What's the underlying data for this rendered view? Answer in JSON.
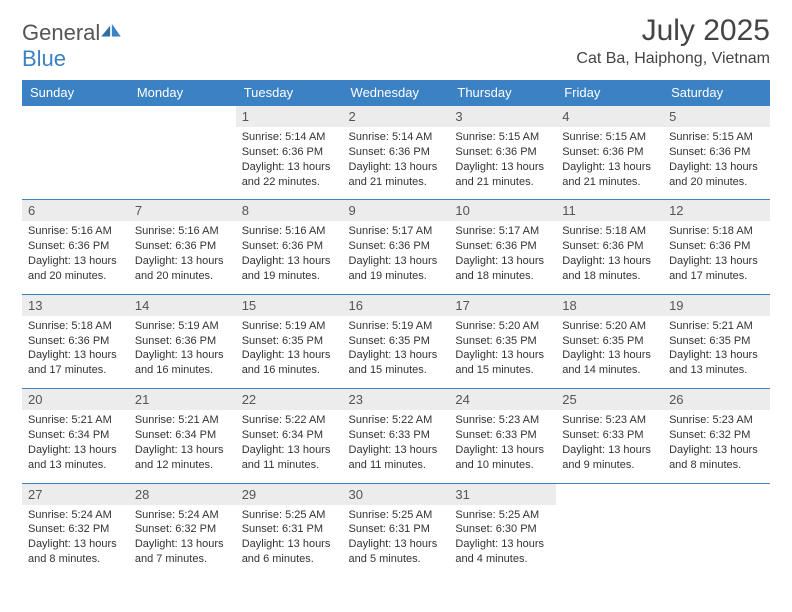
{
  "brand": {
    "name1": "General",
    "name2": "Blue"
  },
  "title": {
    "month": "July 2025",
    "location": "Cat Ba, Haiphong, Vietnam"
  },
  "colors": {
    "accent": "#3b82c4",
    "header_text": "#ffffff",
    "daynum_bg": "#ececec",
    "body_text": "#333333"
  },
  "weekdays": [
    "Sunday",
    "Monday",
    "Tuesday",
    "Wednesday",
    "Thursday",
    "Friday",
    "Saturday"
  ],
  "weeks": [
    [
      null,
      null,
      {
        "d": "1",
        "sr": "5:14 AM",
        "ss": "6:36 PM",
        "dl": "13 hours and 22 minutes."
      },
      {
        "d": "2",
        "sr": "5:14 AM",
        "ss": "6:36 PM",
        "dl": "13 hours and 21 minutes."
      },
      {
        "d": "3",
        "sr": "5:15 AM",
        "ss": "6:36 PM",
        "dl": "13 hours and 21 minutes."
      },
      {
        "d": "4",
        "sr": "5:15 AM",
        "ss": "6:36 PM",
        "dl": "13 hours and 21 minutes."
      },
      {
        "d": "5",
        "sr": "5:15 AM",
        "ss": "6:36 PM",
        "dl": "13 hours and 20 minutes."
      }
    ],
    [
      {
        "d": "6",
        "sr": "5:16 AM",
        "ss": "6:36 PM",
        "dl": "13 hours and 20 minutes."
      },
      {
        "d": "7",
        "sr": "5:16 AM",
        "ss": "6:36 PM",
        "dl": "13 hours and 20 minutes."
      },
      {
        "d": "8",
        "sr": "5:16 AM",
        "ss": "6:36 PM",
        "dl": "13 hours and 19 minutes."
      },
      {
        "d": "9",
        "sr": "5:17 AM",
        "ss": "6:36 PM",
        "dl": "13 hours and 19 minutes."
      },
      {
        "d": "10",
        "sr": "5:17 AM",
        "ss": "6:36 PM",
        "dl": "13 hours and 18 minutes."
      },
      {
        "d": "11",
        "sr": "5:18 AM",
        "ss": "6:36 PM",
        "dl": "13 hours and 18 minutes."
      },
      {
        "d": "12",
        "sr": "5:18 AM",
        "ss": "6:36 PM",
        "dl": "13 hours and 17 minutes."
      }
    ],
    [
      {
        "d": "13",
        "sr": "5:18 AM",
        "ss": "6:36 PM",
        "dl": "13 hours and 17 minutes."
      },
      {
        "d": "14",
        "sr": "5:19 AM",
        "ss": "6:36 PM",
        "dl": "13 hours and 16 minutes."
      },
      {
        "d": "15",
        "sr": "5:19 AM",
        "ss": "6:35 PM",
        "dl": "13 hours and 16 minutes."
      },
      {
        "d": "16",
        "sr": "5:19 AM",
        "ss": "6:35 PM",
        "dl": "13 hours and 15 minutes."
      },
      {
        "d": "17",
        "sr": "5:20 AM",
        "ss": "6:35 PM",
        "dl": "13 hours and 15 minutes."
      },
      {
        "d": "18",
        "sr": "5:20 AM",
        "ss": "6:35 PM",
        "dl": "13 hours and 14 minutes."
      },
      {
        "d": "19",
        "sr": "5:21 AM",
        "ss": "6:35 PM",
        "dl": "13 hours and 13 minutes."
      }
    ],
    [
      {
        "d": "20",
        "sr": "5:21 AM",
        "ss": "6:34 PM",
        "dl": "13 hours and 13 minutes."
      },
      {
        "d": "21",
        "sr": "5:21 AM",
        "ss": "6:34 PM",
        "dl": "13 hours and 12 minutes."
      },
      {
        "d": "22",
        "sr": "5:22 AM",
        "ss": "6:34 PM",
        "dl": "13 hours and 11 minutes."
      },
      {
        "d": "23",
        "sr": "5:22 AM",
        "ss": "6:33 PM",
        "dl": "13 hours and 11 minutes."
      },
      {
        "d": "24",
        "sr": "5:23 AM",
        "ss": "6:33 PM",
        "dl": "13 hours and 10 minutes."
      },
      {
        "d": "25",
        "sr": "5:23 AM",
        "ss": "6:33 PM",
        "dl": "13 hours and 9 minutes."
      },
      {
        "d": "26",
        "sr": "5:23 AM",
        "ss": "6:32 PM",
        "dl": "13 hours and 8 minutes."
      }
    ],
    [
      {
        "d": "27",
        "sr": "5:24 AM",
        "ss": "6:32 PM",
        "dl": "13 hours and 8 minutes."
      },
      {
        "d": "28",
        "sr": "5:24 AM",
        "ss": "6:32 PM",
        "dl": "13 hours and 7 minutes."
      },
      {
        "d": "29",
        "sr": "5:25 AM",
        "ss": "6:31 PM",
        "dl": "13 hours and 6 minutes."
      },
      {
        "d": "30",
        "sr": "5:25 AM",
        "ss": "6:31 PM",
        "dl": "13 hours and 5 minutes."
      },
      {
        "d": "31",
        "sr": "5:25 AM",
        "ss": "6:30 PM",
        "dl": "13 hours and 4 minutes."
      },
      null,
      null
    ]
  ]
}
